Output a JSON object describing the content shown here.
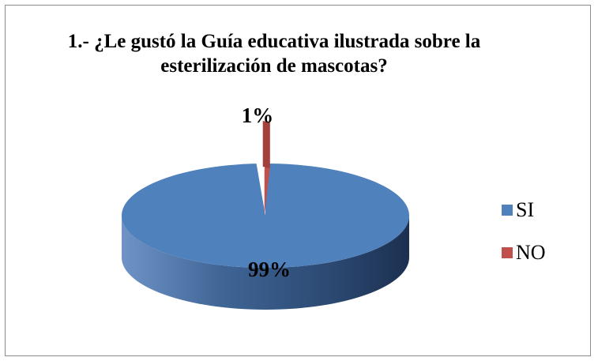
{
  "chart_data": {
    "type": "pie",
    "title": "1.- ¿Le gustó la Guía educativa ilustrada sobre la esterilización de mascotas?",
    "categories": [
      "SI",
      "NO"
    ],
    "values": [
      99,
      1
    ],
    "data_labels": [
      "99%",
      "1%"
    ],
    "colors": [
      "#4f81bd",
      "#c0504d"
    ],
    "legend_position": "right",
    "style": "3d-pie"
  }
}
